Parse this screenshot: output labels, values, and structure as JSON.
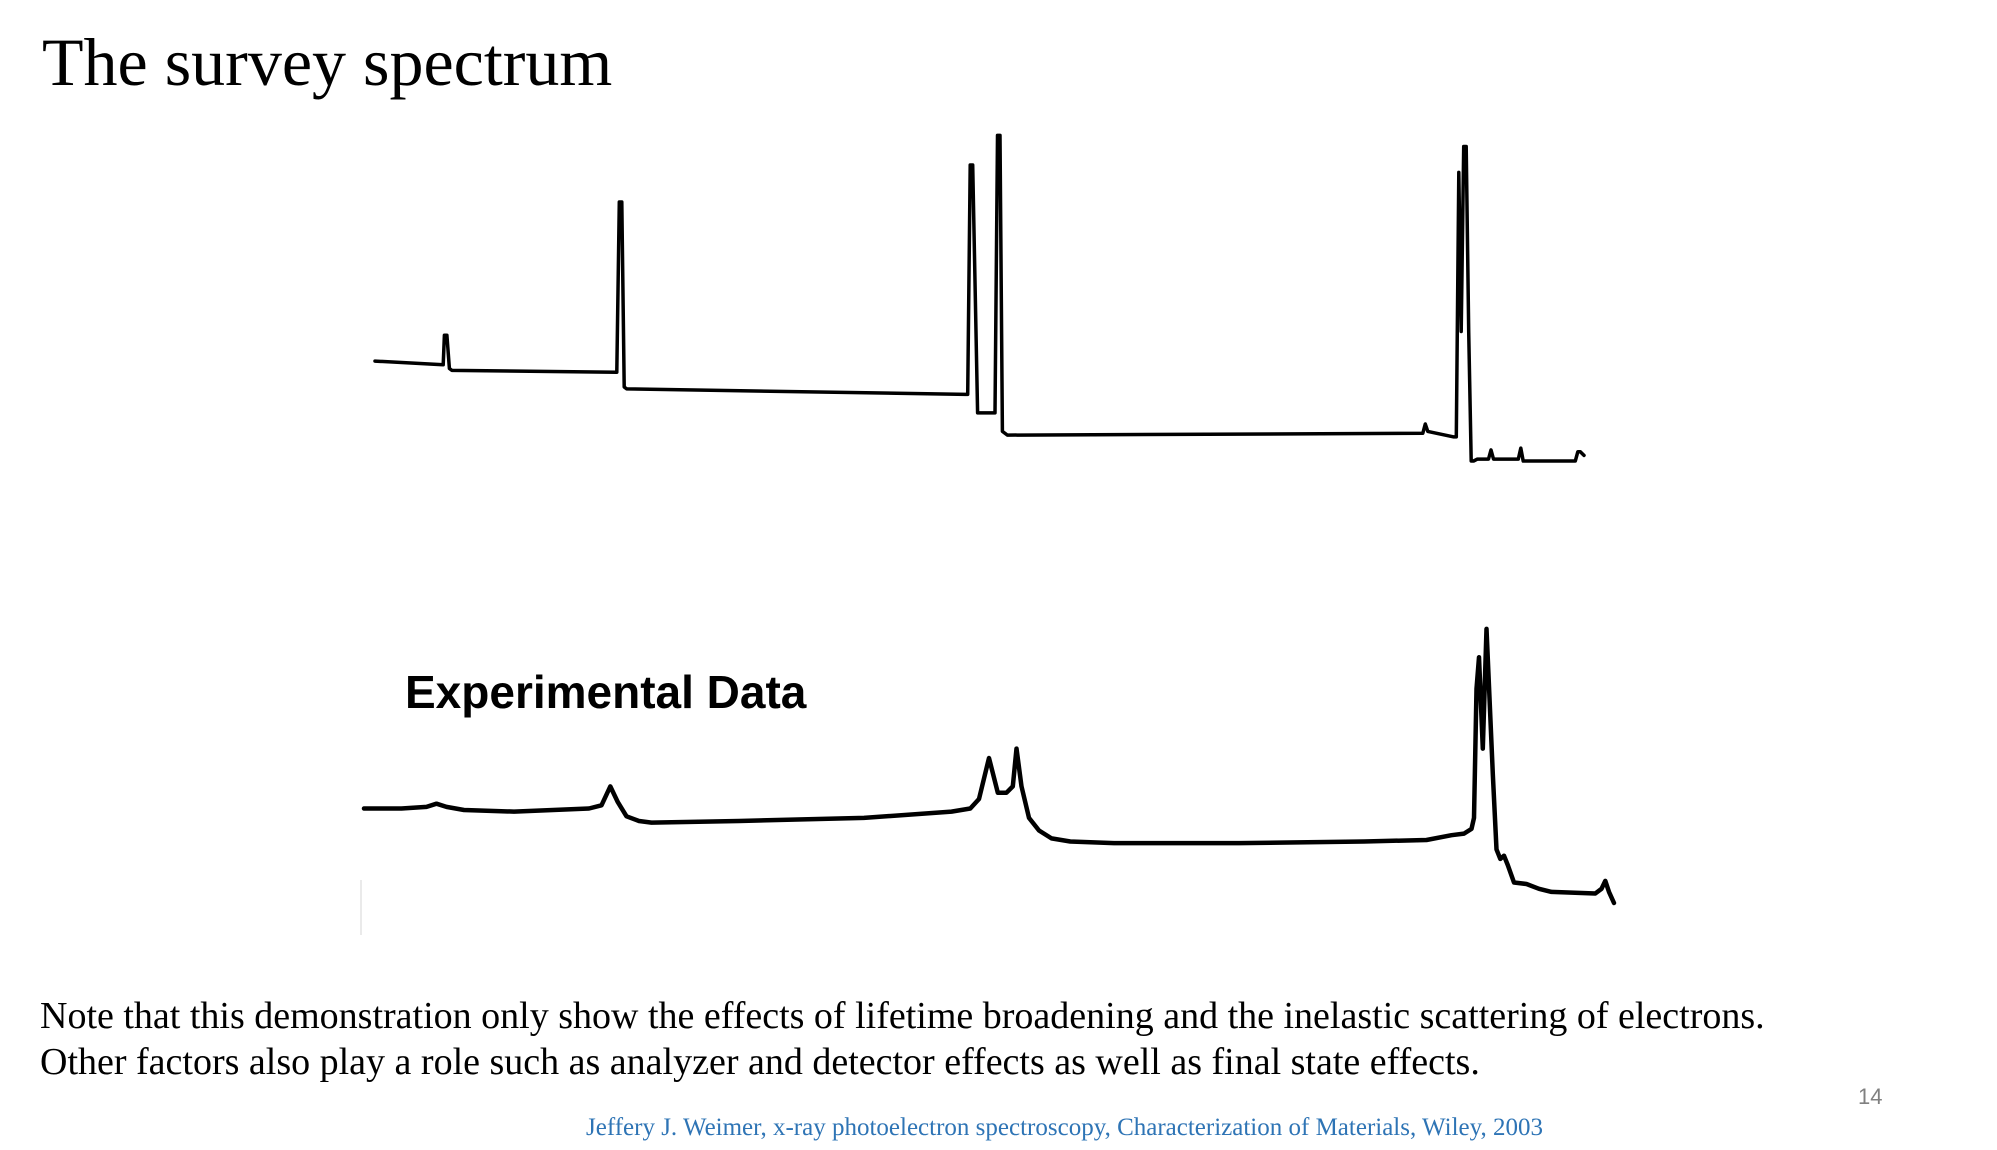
{
  "slide": {
    "title": "The survey spectrum",
    "note_lines": [
      "Note that this demonstration only show the effects of lifetime broadening and the inelastic scattering of electrons.",
      "Other factors also play a role such as analyzer and detector effects as well as final state effects."
    ],
    "citation": "Jeffery J. Weimer, x-ray photoelectron spectroscopy, Characterization of Materials, Wiley, 2003",
    "page_number": "14"
  },
  "chart_data": [
    {
      "type": "line",
      "title": "",
      "xlabel": "",
      "ylabel": "",
      "axes_shown": false,
      "grid": false,
      "xlim": [
        0,
        100
      ],
      "ylim": [
        0,
        100
      ],
      "series": [
        {
          "x": [
            0,
            5.5,
            5.6,
            5.8,
            6.0,
            6.2,
            19.5,
            19.7,
            19.9,
            20.1,
            20.3,
            47.6,
            47.8,
            48.0,
            48.2,
            48.6,
            50.0,
            50.2,
            50.4,
            50.6,
            51.0,
            84.5,
            84.7,
            84.9,
            87.0,
            87.2,
            87.4,
            87.6,
            87.8,
            88.0,
            88.2,
            88.4,
            88.6,
            88.9,
            89.8,
            90.0,
            90.2,
            92.2,
            92.4,
            92.6,
            96.8,
            97.0,
            97.2,
            97.5
          ],
          "y": [
            37.0,
            36.0,
            44.0,
            44.0,
            35.0,
            34.5,
            34.0,
            80.0,
            80.0,
            30.0,
            29.5,
            28.0,
            28.0,
            90.0,
            90.0,
            23.0,
            23.0,
            98.0,
            98.0,
            18.0,
            17.0,
            17.5,
            20.0,
            18.0,
            16.5,
            16.5,
            88.0,
            45.0,
            95.0,
            95.0,
            45.0,
            10.0,
            10.0,
            10.5,
            10.5,
            13.0,
            10.5,
            10.5,
            13.5,
            10.0,
            10.0,
            12.5,
            12.5,
            11.5
          ]
        }
      ]
    },
    {
      "type": "line",
      "title": "",
      "xlabel": "",
      "ylabel": "",
      "axes_shown": false,
      "grid": false,
      "legend": "Experimental Data",
      "xlim": [
        0,
        100
      ],
      "ylim": [
        0,
        100
      ],
      "series": [
        {
          "x": [
            0,
            3.0,
            5.0,
            5.8,
            6.6,
            8.0,
            12.0,
            18.0,
            19.0,
            19.7,
            20.3,
            21.0,
            22.0,
            23.0,
            30.0,
            40.0,
            47.0,
            48.5,
            49.2,
            50.0,
            50.7,
            51.4,
            51.9,
            52.2,
            52.6,
            53.2,
            54.0,
            55.0,
            56.5,
            60.0,
            70.0,
            80.0,
            85.0,
            87.0,
            88.0,
            88.6,
            88.8,
            89.0,
            89.2,
            89.5,
            89.8,
            90.3,
            90.6,
            90.9,
            91.2,
            91.5,
            92.0,
            93.0,
            94.0,
            95.0,
            98.5,
            99.0,
            99.3,
            99.6,
            100
          ],
          "y": [
            37.0,
            37.0,
            37.5,
            38.5,
            37.5,
            36.5,
            36.0,
            37.0,
            38.0,
            44.0,
            39.0,
            34.5,
            33.0,
            32.5,
            33.0,
            34.0,
            36.0,
            37.0,
            40.0,
            53.0,
            42.0,
            42.0,
            44.0,
            56.0,
            44.0,
            34.0,
            30.0,
            27.5,
            26.5,
            26.0,
            26.0,
            26.5,
            27.0,
            28.5,
            29.0,
            30.5,
            34.0,
            75.0,
            85.0,
            56.0,
            94.0,
            48.0,
            24.0,
            21.0,
            22.0,
            19.0,
            13.5,
            13.0,
            11.5,
            10.5,
            10.0,
            11.5,
            14.0,
            10.5,
            7.0
          ]
        }
      ]
    }
  ]
}
